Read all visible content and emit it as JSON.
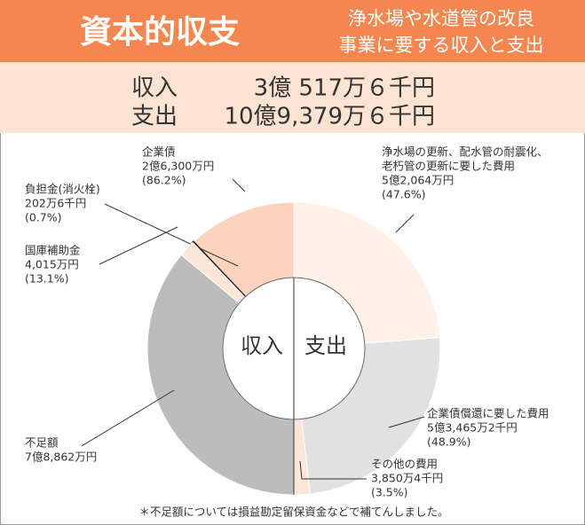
{
  "chart_data": {
    "type": "donut",
    "title": "資本的収支",
    "subtitle": [
      "浄水場や水道管の改良",
      "事業に要する収入と支出"
    ],
    "summary": [
      [
        "収入",
        "3億 517万６千円"
      ],
      [
        "支出",
        "10億9,379万６千円"
      ]
    ],
    "center_labels": [
      "収入",
      "支出"
    ],
    "halves": [
      {
        "name": "収入",
        "segments": [
          {
            "name_lines": [
              "企業債"
            ],
            "value": 26300,
            "value_label": "2億6,300万円",
            "percent": 86.2,
            "percent_label": "(86.2%)",
            "color": "#fcd3bd"
          },
          {
            "name_lines": [
              "負担金(消火栓)"
            ],
            "value": 202.6,
            "value_label": "202万6千円",
            "percent": 0.7,
            "percent_label": "(0.7%)",
            "color": "#222222"
          },
          {
            "name_lines": [
              "国庫補助金"
            ],
            "value": 4015,
            "value_label": "4,015万円",
            "percent": 13.1,
            "percent_label": "(13.1%)",
            "color": "#fde6d8"
          },
          {
            "name_lines": [
              "不足額"
            ],
            "value": 78862,
            "value_label": "7億8,862万円",
            "percent": null,
            "percent_label": null,
            "color": "#bcbcbc"
          }
        ]
      },
      {
        "name": "支出",
        "segments": [
          {
            "name_lines": [
              "浄水場の更新、配水管の耐震化、",
              "老朽管の更新に要した費用"
            ],
            "value": 52064,
            "value_label": "5億2,064万円",
            "percent": 47.6,
            "percent_label": "(47.6%)",
            "color": "#fff1e8"
          },
          {
            "name_lines": [
              "企業債償還に要した費用"
            ],
            "value": 53465.2,
            "value_label": "5億3,465万2千円",
            "percent": 48.9,
            "percent_label": "(48.9%)",
            "color": "#e1e1e1"
          },
          {
            "name_lines": [
              "その他の費用"
            ],
            "value": 3850.4,
            "value_label": "3,850万4千円",
            "percent": 3.5,
            "percent_label": "(3.5%)",
            "color": "#fde6d8"
          }
        ]
      }
    ],
    "footnote": "＊不足額については損益勘定留保資金などで補てんしました。"
  }
}
